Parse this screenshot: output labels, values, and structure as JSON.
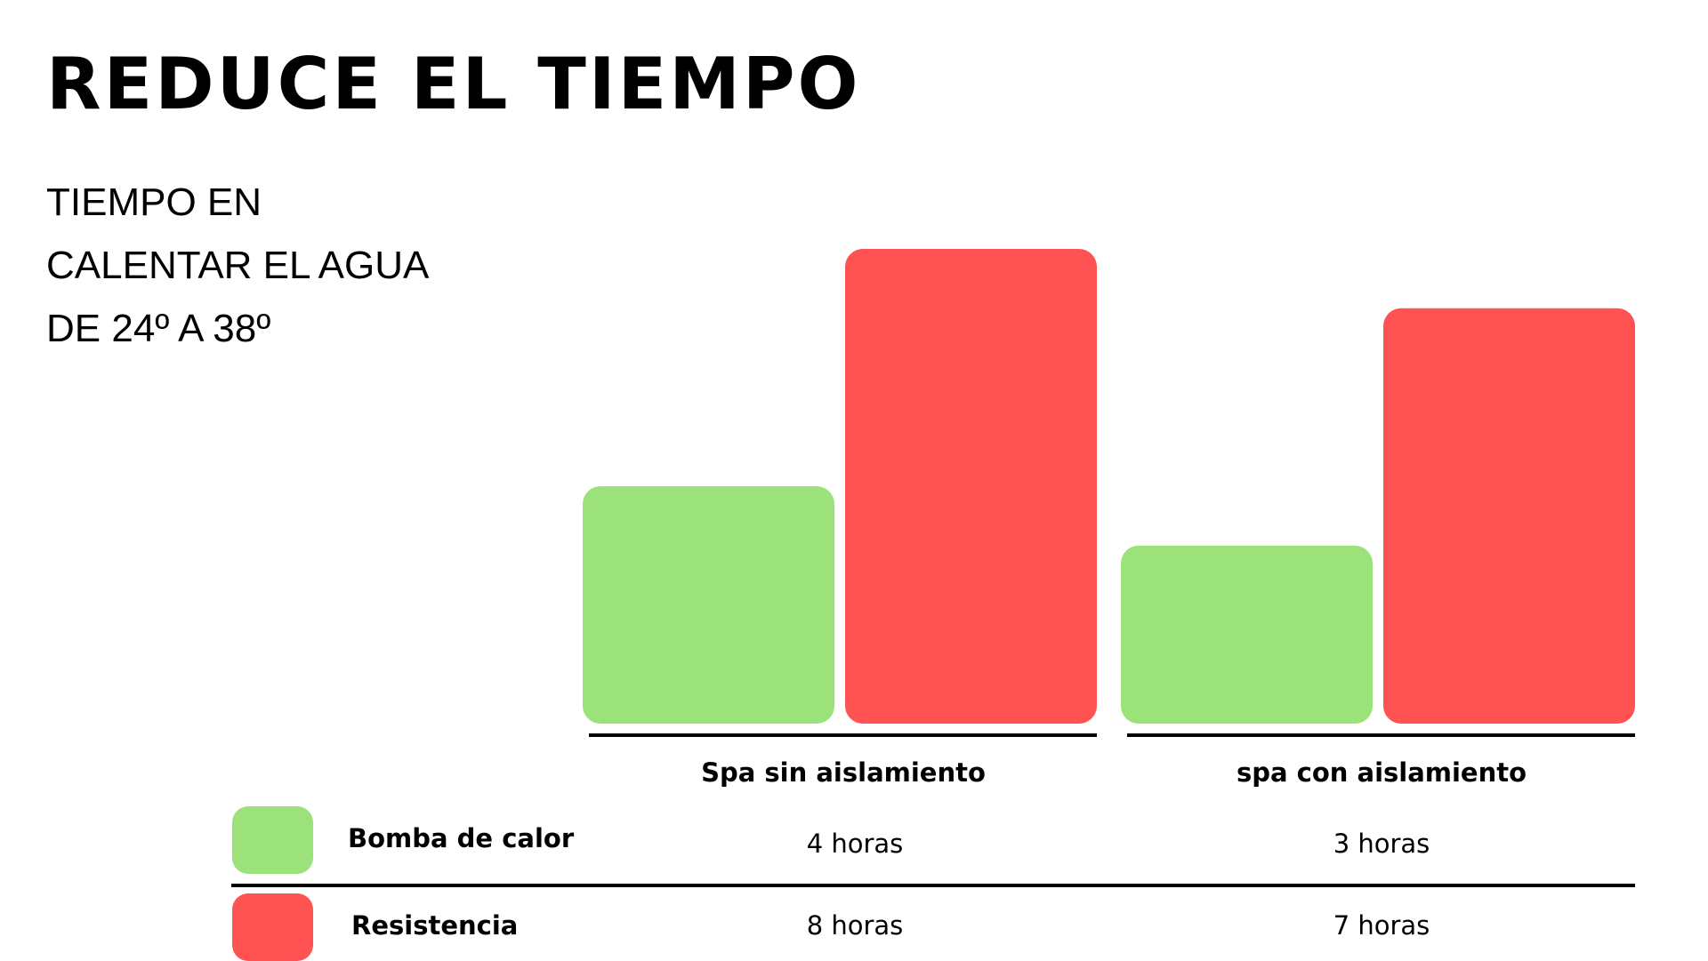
{
  "title": "REDUCE EL TIEMPO",
  "subtitle_lines": [
    "TIEMPO EN",
    "CALENTAR EL AGUA",
    "DE 24º A 38º"
  ],
  "chart_data": {
    "type": "bar",
    "categories": [
      "Spa sin aislamiento",
      "spa con aislamiento"
    ],
    "series": [
      {
        "name": "Bomba de calor",
        "color": "#9BE27A",
        "values": [
          4,
          3
        ],
        "labels": [
          "4 horas",
          "3 horas"
        ]
      },
      {
        "name": "Resistencia",
        "color": "#FF5252",
        "values": [
          8,
          7
        ],
        "labels": [
          "8 horas",
          "7 horas"
        ]
      }
    ],
    "unit": "horas",
    "ylim": [
      0,
      8
    ],
    "grid": false,
    "legend": "bottom-left table"
  }
}
